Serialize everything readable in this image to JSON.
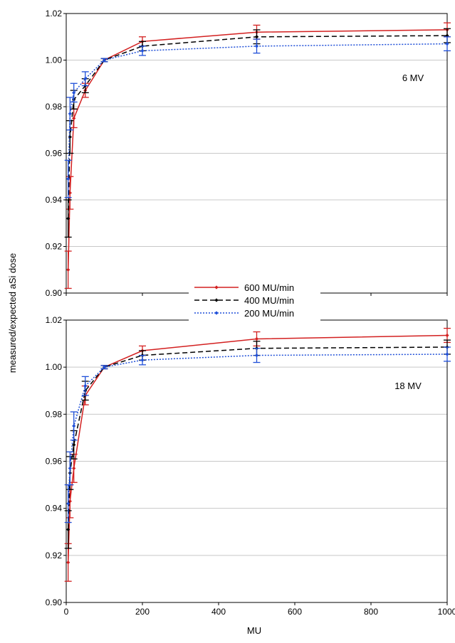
{
  "figure": {
    "ylabel": "measured/expected aSi dose",
    "xlabel": "MU",
    "legend": {
      "placement": "between-panels-center",
      "entries": [
        "600 MU/min",
        "400 MU/min",
        "200 MU/min"
      ]
    }
  },
  "chart_data": [
    {
      "type": "line",
      "panel_label": "6 MV",
      "x": [
        5,
        10,
        20,
        50,
        100,
        200,
        500,
        1000
      ],
      "xlim": [
        0,
        1000
      ],
      "ylim": [
        0.9,
        1.02
      ],
      "xticks": [
        0,
        200,
        400,
        600,
        800,
        1000
      ],
      "xtick_labels": [
        "",
        "",
        "",
        "",
        "",
        ""
      ],
      "yticks": [
        0.9,
        0.92,
        0.94,
        0.96,
        0.98,
        1.0,
        1.02
      ],
      "ytick_labels": [
        "0.90",
        "0.92",
        "0.94",
        "0.96",
        "0.98",
        "1.00",
        "1.02"
      ],
      "grid": "horizontal",
      "series": [
        {
          "name": "600 MU/min",
          "color": "#d32020",
          "dash": "solid",
          "values": [
            0.91,
            0.943,
            0.975,
            0.987,
            1.0,
            1.008,
            1.012,
            1.013
          ],
          "errors": [
            0.008,
            0.007,
            0.004,
            0.003,
            0.0007,
            0.002,
            0.003,
            0.003
          ]
        },
        {
          "name": "400 MU/min",
          "color": "#000000",
          "dash": "dashed",
          "values": [
            0.932,
            0.967,
            0.983,
            0.989,
            1.0,
            1.006,
            1.01,
            1.0105
          ],
          "errors": [
            0.008,
            0.007,
            0.004,
            0.003,
            0.0007,
            0.002,
            0.003,
            0.003
          ]
        },
        {
          "name": "200 MU/min",
          "color": "#1f4fd8",
          "dash": "dotted",
          "values": [
            0.949,
            0.977,
            0.986,
            0.992,
            1.0,
            1.004,
            1.006,
            1.007
          ],
          "errors": [
            0.008,
            0.007,
            0.004,
            0.003,
            0.0007,
            0.002,
            0.003,
            0.003
          ]
        }
      ]
    },
    {
      "type": "line",
      "panel_label": "18 MV",
      "x": [
        5,
        10,
        20,
        50,
        100,
        200,
        500,
        1000
      ],
      "xlim": [
        0,
        1000
      ],
      "ylim": [
        0.9,
        1.02
      ],
      "xticks": [
        0,
        200,
        400,
        600,
        800,
        1000
      ],
      "xtick_labels": [
        "0",
        "200",
        "400",
        "600",
        "800",
        "1000"
      ],
      "yticks": [
        0.9,
        0.92,
        0.94,
        0.96,
        0.98,
        1.0,
        1.02
      ],
      "ytick_labels": [
        "0.90",
        "0.92",
        "0.94",
        "0.96",
        "0.98",
        "1.00",
        "1.02"
      ],
      "grid": "horizontal",
      "series": [
        {
          "name": "600 MU/min",
          "color": "#d32020",
          "dash": "solid",
          "values": [
            0.917,
            0.943,
            0.957,
            0.988,
            1.0,
            1.007,
            1.012,
            1.0135
          ],
          "errors": [
            0.008,
            0.007,
            0.006,
            0.004,
            0.0007,
            0.002,
            0.003,
            0.003
          ]
        },
        {
          "name": "400 MU/min",
          "color": "#000000",
          "dash": "dashed",
          "values": [
            0.931,
            0.955,
            0.967,
            0.99,
            1.0,
            1.005,
            1.008,
            1.0085
          ],
          "errors": [
            0.008,
            0.007,
            0.006,
            0.004,
            0.0007,
            0.002,
            0.003,
            0.003
          ]
        },
        {
          "name": "200 MU/min",
          "color": "#1f4fd8",
          "dash": "dotted",
          "values": [
            0.942,
            0.957,
            0.975,
            0.992,
            1.0,
            1.003,
            1.005,
            1.0055
          ],
          "errors": [
            0.008,
            0.007,
            0.006,
            0.004,
            0.0007,
            0.002,
            0.003,
            0.003
          ]
        }
      ]
    }
  ]
}
